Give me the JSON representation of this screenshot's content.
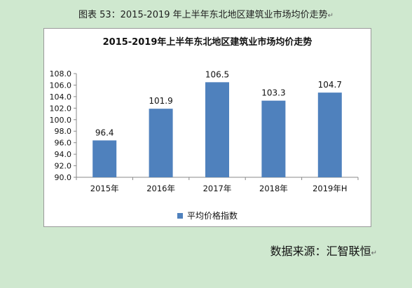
{
  "caption": "图表 53：2015-2019 年上半年东北地区建筑业市场均价走势",
  "source": "数据来源：汇智联恒",
  "colors": {
    "bar": "#4f81bd",
    "axis": "#888888",
    "background": "#cfe8cf"
  },
  "chart_data": {
    "type": "bar",
    "title": "2015-2019年上半年东北地区建筑业市场均价走势",
    "categories": [
      "2015年",
      "2016年",
      "2017年",
      "2018年",
      "2019年H"
    ],
    "series": [
      {
        "name": "平均价格指数",
        "values": [
          96.4,
          101.9,
          106.5,
          103.3,
          104.7
        ]
      }
    ],
    "ylim": [
      90.0,
      108.0
    ],
    "yticks": [
      "90.0",
      "92.0",
      "94.0",
      "96.0",
      "98.0",
      "100.0",
      "102.0",
      "104.0",
      "106.0",
      "108.0"
    ],
    "value_labels": [
      "96.4",
      "101.9",
      "106.5",
      "103.3",
      "104.7"
    ],
    "grid": false,
    "legend": "bottom"
  }
}
